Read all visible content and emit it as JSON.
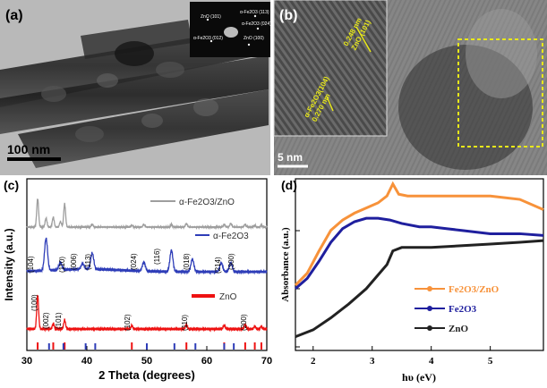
{
  "panels": {
    "a": {
      "label": "(a)",
      "scale_bar": "100 nm",
      "inset_labels": [
        "ZnO (101)",
        "α-Fe2O3 (113)",
        "α-Fe2O3 (024)",
        "α-Fe2O3 (012)",
        "ZnO (100)"
      ]
    },
    "b": {
      "label": "(b)",
      "scale_bar": "5 nm",
      "lattice_1": "0.248 nm",
      "lattice_1_plane": "ZnO (101)",
      "lattice_2_plane": "α-Fe2O3(104)",
      "lattice_2": "0.270 nm"
    },
    "c": {
      "label": "(c)",
      "xlabel": "2 Theta (degrees)",
      "ylabel": "Intensity (a.u.)",
      "xticks": [
        "30",
        "40",
        "50",
        "60",
        "70"
      ],
      "legend": [
        "α-Fe2O3/ZnO",
        "α-Fe2O3",
        "ZnO"
      ],
      "fe_peaks": [
        "(104)",
        "(110)",
        "(006)",
        "(113)",
        "(024)",
        "(116)",
        "(018)",
        "(214)",
        "(300)"
      ],
      "zno_peaks": [
        "(100)",
        "(002)",
        "(101)",
        "(102)",
        "(110)",
        "(200)"
      ]
    },
    "d": {
      "label": "(d)",
      "xlabel": "hυ (eV)",
      "ylabel": "Absorbance (a.u.)",
      "xticks": [
        "2",
        "3",
        "4",
        "5"
      ],
      "legend": [
        "Fe2O3/ZnO",
        "Fe2O3",
        "ZnO"
      ]
    }
  },
  "colors": {
    "composite_gray": "#9e9e9e",
    "fe2o3_blue": "#2e3db8",
    "zno_red": "#ee1111",
    "orange": "#f7923a",
    "navy": "#1f1f9e",
    "dark": "#222222",
    "inset_yellow": "#e8e81a"
  },
  "chart_data": [
    {
      "type": "line",
      "panel": "c",
      "xlabel": "2 Theta (degrees)",
      "ylabel": "Intensity (a.u.)",
      "xlim": [
        30,
        70
      ],
      "series": [
        {
          "name": "α-Fe2O3/ZnO",
          "peaks": [
            31.8,
            33.2,
            34.4,
            35.6,
            36.3,
            40.9,
            47.5,
            49.5,
            54.1,
            56.6,
            62.9,
            64.0,
            66.4,
            68.0,
            69.1
          ]
        },
        {
          "name": "α-Fe2O3",
          "peaks": [
            33.2,
            35.6,
            39.3,
            40.9,
            49.5,
            54.1,
            57.6,
            62.4,
            64.0
          ]
        },
        {
          "name": "ZnO",
          "peaks": [
            31.8,
            34.4,
            36.3,
            47.5,
            56.6,
            62.9,
            66.4,
            68.0,
            69.1
          ]
        }
      ]
    },
    {
      "type": "line",
      "panel": "d",
      "xlabel": "hυ (eV)",
      "ylabel": "Absorbance (a.u.)",
      "xlim": [
        1.7,
        5.9
      ],
      "series": [
        {
          "name": "Fe2O3/ZnO",
          "x": [
            1.7,
            1.9,
            2.1,
            2.3,
            2.5,
            2.7,
            2.9,
            3.1,
            3.25,
            3.35,
            3.45,
            3.6,
            3.8,
            4.0,
            4.5,
            5.0,
            5.5,
            5.9
          ],
          "y": [
            0.38,
            0.45,
            0.58,
            0.7,
            0.76,
            0.8,
            0.83,
            0.86,
            0.9,
            0.97,
            0.91,
            0.9,
            0.9,
            0.9,
            0.9,
            0.9,
            0.88,
            0.82
          ]
        },
        {
          "name": "Fe2O3",
          "x": [
            1.7,
            1.9,
            2.1,
            2.3,
            2.5,
            2.7,
            2.9,
            3.1,
            3.3,
            3.5,
            3.8,
            4.0,
            4.5,
            5.0,
            5.5,
            5.9
          ],
          "y": [
            0.36,
            0.42,
            0.52,
            0.63,
            0.71,
            0.75,
            0.77,
            0.77,
            0.76,
            0.74,
            0.72,
            0.72,
            0.7,
            0.68,
            0.68,
            0.67
          ]
        },
        {
          "name": "ZnO",
          "x": [
            1.7,
            2.0,
            2.3,
            2.6,
            2.9,
            3.1,
            3.25,
            3.35,
            3.5,
            3.8,
            4.0,
            4.5,
            5.0,
            5.5,
            5.9
          ],
          "y": [
            0.08,
            0.12,
            0.19,
            0.27,
            0.36,
            0.44,
            0.5,
            0.58,
            0.6,
            0.6,
            0.6,
            0.61,
            0.62,
            0.63,
            0.64
          ]
        }
      ]
    }
  ]
}
